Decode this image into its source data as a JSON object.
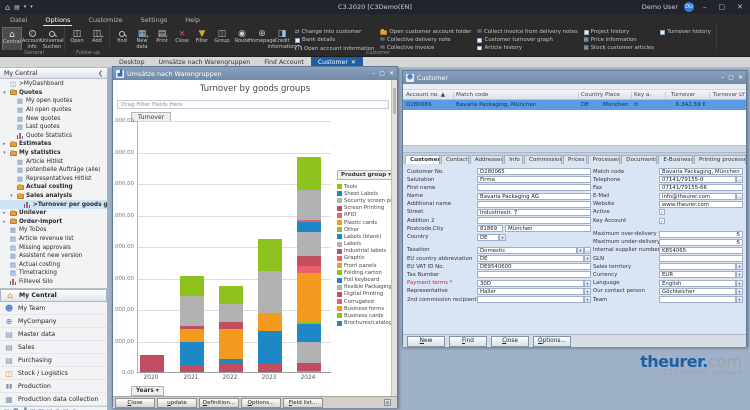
{
  "titlebar": {
    "title": "C3.2020 [C3Demo(EN]",
    "user": "Demo User",
    "avatar": "DU",
    "quick_icons": [
      "home-icon",
      "clipboard-icon",
      "chevron-down-icon",
      "chevron-down-icon"
    ]
  },
  "ribbon": {
    "tabs": [
      {
        "label": "Datei",
        "active": false
      },
      {
        "label": "Options",
        "active": true
      },
      {
        "label": "Customize",
        "active": false
      },
      {
        "label": "Settings",
        "active": false
      },
      {
        "label": "Help",
        "active": false
      }
    ],
    "groups": [
      {
        "label": "General",
        "buttons": [
          {
            "label": "Central",
            "icon": "home",
            "selected": true
          },
          {
            "label": "Account info",
            "icon": "info"
          },
          {
            "label": "Universal Suchen",
            "icon": "search"
          }
        ],
        "item_columns": []
      },
      {
        "label": "Follow-up",
        "buttons": [
          {
            "label": "Open",
            "icon": "open"
          },
          {
            "label": "Add",
            "icon": "add"
          }
        ],
        "item_columns": []
      },
      {
        "label": "Customer",
        "buttons": [
          {
            "label": "find",
            "icon": "search"
          },
          {
            "label": "New data set",
            "icon": "newdata"
          },
          {
            "label": "Print",
            "icon": "print"
          },
          {
            "label": "Close",
            "icon": "close"
          },
          {
            "label": "Filter",
            "icon": "filter"
          },
          {
            "label": "Group",
            "icon": "group"
          },
          {
            "label": "Route",
            "icon": "route"
          },
          {
            "label": "Homepage",
            "icon": "homepage"
          },
          {
            "label": "Credit information",
            "icon": "credit"
          }
        ],
        "item_columns": [
          [
            {
              "label": "Change into customer",
              "icon": "people"
            },
            {
              "label": "Bank details",
              "icon": "check"
            },
            {
              "label": "Open account information",
              "icon": "info"
            }
          ],
          [
            {
              "label": "Open customer account folder",
              "icon": "folder"
            },
            {
              "label": "Collective delivery note",
              "icon": "envelope"
            },
            {
              "label": "Collective invoice",
              "icon": "envelope"
            }
          ],
          [
            {
              "label": "Collect invoice from delivery notes",
              "icon": "envelope"
            },
            {
              "label": "Customer turnover graph",
              "icon": "check"
            },
            {
              "label": "Article history",
              "icon": "check"
            }
          ],
          [
            {
              "label": "Project history",
              "icon": "check"
            },
            {
              "label": "Price information",
              "icon": "grid"
            },
            {
              "label": "Stock customer articles",
              "icon": "grid"
            }
          ],
          [
            {
              "label": "Turnover history",
              "icon": "check"
            }
          ]
        ]
      }
    ]
  },
  "tabstrip": {
    "tabs": [
      {
        "label": "Desktop",
        "active": false
      },
      {
        "label": "Umsätze nach Warengruppen",
        "active": false
      },
      {
        "label": "Find Account",
        "active": false
      },
      {
        "label": "Customer",
        "active": true,
        "closable": true
      }
    ]
  },
  "sidebar": {
    "header": "My Central",
    "tree": [
      {
        "label": ">MyDashboard",
        "icon": "dash",
        "indent": 0
      },
      {
        "label": "Quotes",
        "icon": "folder",
        "indent": 0,
        "expander": "open",
        "bold": true
      },
      {
        "label": "My open quotes",
        "icon": "grid",
        "indent": 1
      },
      {
        "label": "All open quotes",
        "icon": "grid",
        "indent": 1
      },
      {
        "label": "New quotes",
        "icon": "grid",
        "indent": 1
      },
      {
        "label": "Last quotes",
        "icon": "grid",
        "indent": 1
      },
      {
        "label": "Quote Statistics",
        "icon": "chart",
        "indent": 1
      },
      {
        "label": "Estimates",
        "icon": "folder",
        "indent": 0,
        "expander": "closed",
        "bold": true
      },
      {
        "label": "My statistics",
        "icon": "folder",
        "indent": 0,
        "expander": "open",
        "bold": true
      },
      {
        "label": "Article Hitlist",
        "icon": "grid",
        "indent": 1
      },
      {
        "label": "potentielle Aufträge (alle)",
        "icon": "grid",
        "indent": 1
      },
      {
        "label": "Representatives Hitlist",
        "icon": "grid",
        "indent": 1
      },
      {
        "label": "Actual costing",
        "icon": "folder",
        "indent": 1,
        "bold": true
      },
      {
        "label": "Sales analysis",
        "icon": "folder",
        "indent": 1,
        "expander": "open",
        "bold": true
      },
      {
        "label": ">Turnover per goods groups",
        "icon": "chart",
        "indent": 2,
        "selected": true
      },
      {
        "label": "Unilever",
        "icon": "folder",
        "indent": 0,
        "expander": "closed",
        "bold": true
      },
      {
        "label": "Order-Import",
        "icon": "folder",
        "indent": 0,
        "expander": "closed",
        "bold": true
      },
      {
        "label": "My ToDos",
        "icon": "grid",
        "indent": 0
      },
      {
        "label": "Article revenue list",
        "icon": "table",
        "indent": 0
      },
      {
        "label": "Missing approvals",
        "icon": "table",
        "indent": 0
      },
      {
        "label": "Assistent new version",
        "icon": "grid",
        "indent": 0
      },
      {
        "label": "Actual costing",
        "icon": "table",
        "indent": 0
      },
      {
        "label": "Timetracking",
        "icon": "table",
        "indent": 0
      },
      {
        "label": "Filllevel Silo",
        "icon": "chart",
        "indent": 0
      }
    ],
    "nav": [
      {
        "label": "My Central",
        "icon": "home",
        "selected": true
      },
      {
        "label": "My Team",
        "icon": "team"
      },
      {
        "label": "MyCompany",
        "icon": "globe"
      },
      {
        "label": "Master data",
        "icon": "masterdata"
      },
      {
        "label": "Sales",
        "icon": "sales"
      },
      {
        "label": "Purchasing",
        "icon": "purchasing"
      },
      {
        "label": "Stock / Logistics",
        "icon": "stock"
      },
      {
        "label": "Production",
        "icon": "production"
      },
      {
        "label": "Production data collection",
        "icon": "pdc"
      }
    ],
    "footer_icons": [
      "new-icon",
      "team-icon",
      "chart-icon",
      "copy-icon",
      "list-icon",
      "mail-icon",
      "refresh-icon",
      "folder-icon",
      "globe-icon",
      "more-icon"
    ]
  },
  "chart_window": {
    "title": "Umsätze nach Warengruppen",
    "filter_hint": "Drag Filter Fields Here",
    "series_button": "Turnover",
    "x_button": "Years",
    "footer_buttons": [
      "Close",
      "update",
      "Definition...",
      "Options...",
      "Field list..."
    ]
  },
  "chart_data": {
    "type": "bar",
    "stacked": true,
    "title": "Turnover by goods groups",
    "categories": [
      "2020",
      "2021",
      "2022",
      "2023",
      "2024"
    ],
    "ylim": [
      0,
      800000
    ],
    "ytick_step": 100000,
    "ytick_labels_top_to_bottom": [
      "800.000,00",
      "700.000,00",
      "600.000,00",
      "500.000,00",
      "400.000,00",
      "300.000,00",
      "200.000,00",
      "100.000,00",
      "0,00"
    ],
    "grid": true,
    "legend_position": "right",
    "legend_title": "Product group",
    "product_groups": [
      {
        "name": "Tools",
        "color": "#8dc21f"
      },
      {
        "name": "Sheet Labels",
        "color": "#1e87c8"
      },
      {
        "name": "Security screen prints",
        "color": "#b2b2b2"
      },
      {
        "name": "Screen Printing",
        "color": "#c14d5e"
      },
      {
        "name": "RFID",
        "color": "#e8606b"
      },
      {
        "name": "Plastic cards",
        "color": "#f49b1f"
      },
      {
        "name": "Other",
        "color": "#8dc21f"
      },
      {
        "name": "Labels (blank)",
        "color": "#1e87c8"
      },
      {
        "name": "Labels",
        "color": "#b2b2b2"
      },
      {
        "name": "Industrial labels",
        "color": "#c14d5e"
      },
      {
        "name": "Graphic",
        "color": "#e8606b"
      },
      {
        "name": "Front panels",
        "color": "#f49b1f"
      },
      {
        "name": "Folding carton",
        "color": "#8dc21f"
      },
      {
        "name": "Foil keyboard",
        "color": "#1e87c8"
      },
      {
        "name": "flexible Packaging",
        "color": "#b2b2b2"
      },
      {
        "name": "Digital Printing",
        "color": "#c14d5e"
      },
      {
        "name": "Corrugated",
        "color": "#e8606b"
      },
      {
        "name": "Business forms",
        "color": "#f49b1f"
      },
      {
        "name": "Business cards",
        "color": "#8dc21f"
      },
      {
        "name": "Brochures/catalogs",
        "color": "#1e87c8"
      }
    ],
    "bars": [
      {
        "category": "2020",
        "segments": [
          {
            "group": "Digital Printing",
            "value": 55000
          }
        ]
      },
      {
        "category": "2021",
        "segments": [
          {
            "group": "Digital Printing",
            "value": 18000
          },
          {
            "group": "Foil keyboard",
            "value": 77000
          },
          {
            "group": "Business forms",
            "value": 41000
          },
          {
            "group": "Industrial labels",
            "value": 11000
          },
          {
            "group": "flexible Packaging",
            "value": 94000
          },
          {
            "group": "Folding carton",
            "value": 64000
          }
        ]
      },
      {
        "category": "2022",
        "segments": [
          {
            "group": "Digital Printing",
            "value": 28000
          },
          {
            "group": "Foil keyboard",
            "value": 13000
          },
          {
            "group": "Business forms",
            "value": 95000
          },
          {
            "group": "Industrial labels",
            "value": 24000
          },
          {
            "group": "flexible Packaging",
            "value": 55000
          },
          {
            "group": "Folding carton",
            "value": 57000
          }
        ]
      },
      {
        "category": "2023",
        "segments": [
          {
            "group": "Digital Printing",
            "value": 29000
          },
          {
            "group": "Foil keyboard",
            "value": 103000
          },
          {
            "group": "Business forms",
            "value": 56000
          },
          {
            "group": "flexible Packaging",
            "value": 134000
          },
          {
            "group": "Folding carton",
            "value": 101000
          }
        ]
      },
      {
        "category": "2024",
        "segments": [
          {
            "group": "Business cards",
            "value": 3000
          },
          {
            "group": "Digital Printing",
            "value": 26000
          },
          {
            "group": "flexible Packaging",
            "value": 66000
          },
          {
            "group": "Foil keyboard",
            "value": 57000
          },
          {
            "group": "Folding carton",
            "value": 8000
          },
          {
            "group": "Business forms",
            "value": 155000
          },
          {
            "group": "Graphic",
            "value": 21000
          },
          {
            "group": "Industrial labels",
            "value": 31000
          },
          {
            "group": "Labels",
            "value": 79000
          },
          {
            "group": "Sheet Labels",
            "value": 29000
          },
          {
            "group": "RFID",
            "value": 8000
          },
          {
            "group": "Security screen prints",
            "value": 95000
          },
          {
            "group": "Tools",
            "value": 106000
          }
        ]
      }
    ]
  },
  "customer_window": {
    "title": "Customer",
    "grid": {
      "columns": [
        "Account no.",
        "Match code",
        "Country Place",
        "Key a.",
        "Turnover",
        "Turnover LY"
      ],
      "row": {
        "account_no": "D280065",
        "match_code": "Bavaria Packaging, München",
        "country": "DE",
        "place": "München",
        "key_a": "It",
        "turnover": "6.342,59 €",
        "turnover_ly": ""
      }
    },
    "tabs": [
      {
        "label": "Customer",
        "active": true
      },
      {
        "label": "Contact"
      },
      {
        "label": "Addresses"
      },
      {
        "label": "Info"
      },
      {
        "label": "Commission"
      },
      {
        "label": "Prices"
      },
      {
        "label": "Processes"
      },
      {
        "label": "Documents"
      },
      {
        "label": "E-Business"
      },
      {
        "label": "Printing processes"
      }
    ],
    "form": {
      "left": [
        {
          "label": "Customer No.",
          "value": "D280065"
        },
        {
          "label": "Salutation",
          "value": "Firma"
        },
        {
          "label": "First name",
          "value": ""
        },
        {
          "label": "Name",
          "value": "Bavaria Packaging AG"
        },
        {
          "label": "Additional name",
          "value": ""
        },
        {
          "label": "Street",
          "value": "Industriestr. 7"
        },
        {
          "label": "Addition 2",
          "value": ""
        },
        {
          "label": "Postcode,City",
          "type": "double",
          "value": "81869",
          "value2": "München"
        },
        {
          "label": "Country",
          "value": "DE",
          "type": "select",
          "narrow": true
        },
        {
          "gap": true
        },
        {
          "label": "Taxation",
          "value": "Domestic",
          "type": "selectx"
        },
        {
          "label": "EU country abbreviation",
          "value": "DE",
          "type": "select"
        },
        {
          "label": "EU VAT ID No.",
          "value": "DE9540600"
        },
        {
          "label": "Tax Number",
          "value": ""
        },
        {
          "label": "Payment terms *",
          "value": "30D",
          "type": "select",
          "required": true
        },
        {
          "label": "Representative",
          "value": "Haller",
          "type": "select"
        },
        {
          "label": "2nd commission recipient",
          "value": "",
          "type": "select"
        }
      ],
      "right": [
        {
          "label": "Match code",
          "value": "Bavaria Packaging, München"
        },
        {
          "label": "Telephone",
          "value": "07141/79155-0",
          "type": "btn"
        },
        {
          "label": "Fax",
          "value": "07141/79155-66"
        },
        {
          "label": "E-Mail",
          "value": "info@theurer.com",
          "type": "btn"
        },
        {
          "label": "Website",
          "value": "www.theurer.com"
        },
        {
          "label": "Active",
          "type": "check",
          "checked": true
        },
        {
          "label": "Key Account",
          "type": "check",
          "checked": true
        },
        {
          "gap": true
        },
        {
          "label": "Maximum over-delivery",
          "value": "5",
          "align": "right"
        },
        {
          "label": "Maximum under-delivery",
          "value": "5",
          "align": "right"
        },
        {
          "label": "Internal supplier number",
          "value": "K854065"
        },
        {
          "label": "GLN",
          "value": ""
        },
        {
          "label": "Sales territory",
          "value": "",
          "type": "select"
        },
        {
          "label": "Currency",
          "value": "EUR",
          "type": "select"
        },
        {
          "label": "Language",
          "value": "English",
          "type": "select"
        },
        {
          "label": "Our contact person",
          "value": "Göchteicher",
          "type": "select"
        },
        {
          "label": "Team",
          "value": "",
          "type": "select"
        }
      ]
    },
    "created": "11.03.2021 DemoUser",
    "modified": "08.11.2024 DemoUser",
    "footer_buttons": [
      "New",
      "Find",
      "Close",
      "Options..."
    ]
  },
  "logo": {
    "brand": "theurer",
    "dot": ".",
    "tld": "com",
    "subtitle": "C3 | ERP/MIS–Software"
  }
}
